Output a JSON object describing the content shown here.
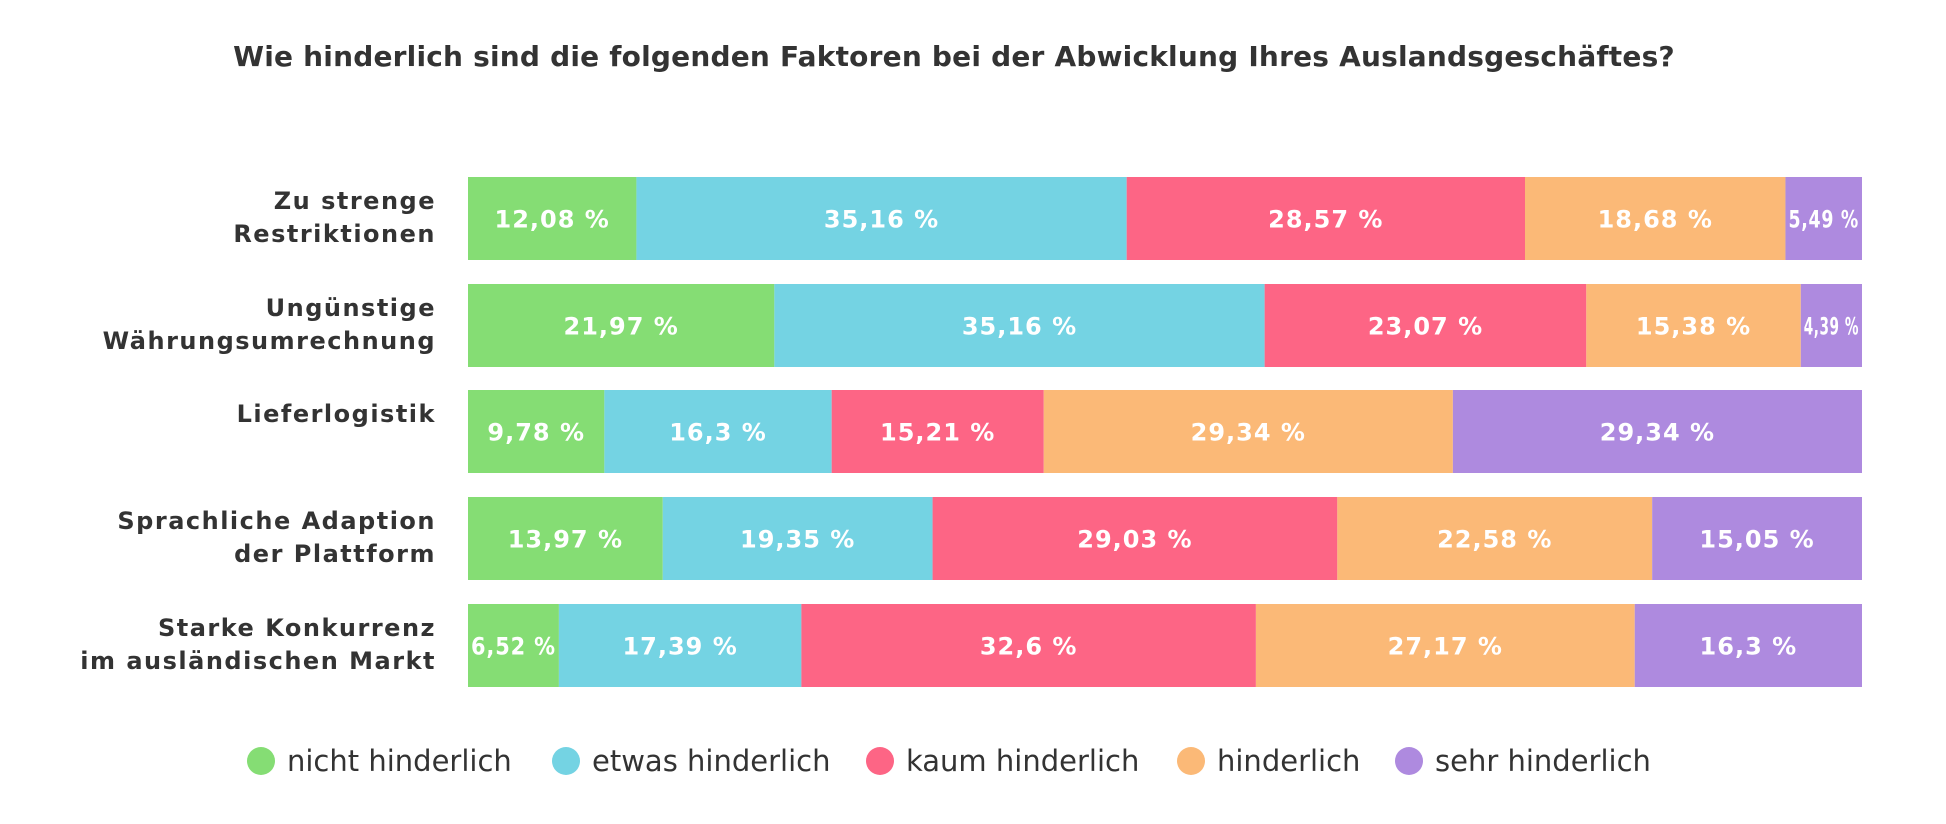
{
  "chart_data": {
    "type": "bar",
    "orientation": "horizontal",
    "stacked": true,
    "title": "Wie hinderlich sind die folgenden Faktoren bei der Abwicklung Ihres Auslandsgeschäftes?",
    "categories": [
      [
        "Zu strenge",
        "Restriktionen"
      ],
      [
        "Ungünstige",
        "Währungsumrechnung"
      ],
      [
        "Lieferlogistik"
      ],
      [
        "Sprachliche Adaption",
        "der Plattform"
      ],
      [
        "Starke Konkurrenz",
        "im ausländischen Markt"
      ]
    ],
    "series": [
      {
        "name": "nicht hinderlich",
        "color": "#85DD74",
        "values": [
          12.08,
          21.97,
          9.78,
          13.97,
          6.52
        ],
        "labels": [
          "12,08 %",
          "21,97 %",
          "9,78 %",
          "13,97 %",
          "6,52 %"
        ]
      },
      {
        "name": "etwas hinderlich",
        "color": "#74D3E3",
        "values": [
          35.16,
          35.16,
          16.3,
          19.35,
          17.39
        ],
        "labels": [
          "35,16 %",
          "35,16 %",
          "16,3 %",
          "19,35 %",
          "17,39 %"
        ]
      },
      {
        "name": "kaum hinderlich",
        "color": "#FD6585",
        "values": [
          28.57,
          23.07,
          15.21,
          29.03,
          32.6
        ],
        "labels": [
          "28,57 %",
          "23,07 %",
          "15,21 %",
          "29,03 %",
          "32,6 %"
        ]
      },
      {
        "name": "hinderlich",
        "color": "#FBB977",
        "values": [
          18.68,
          15.38,
          29.34,
          22.58,
          27.17
        ],
        "labels": [
          "18,68 %",
          "15,38 %",
          "29,34 %",
          "22,58 %",
          "27,17 %"
        ]
      },
      {
        "name": "sehr hinderlich",
        "color": "#AE8ADF",
        "values": [
          5.49,
          4.39,
          29.34,
          15.05,
          16.3
        ],
        "labels": [
          "5,49 %",
          "4,39 %",
          "29,34 %",
          "15,05 %",
          "16,3 %"
        ]
      }
    ],
    "xlim": [
      0,
      100
    ],
    "grid": false,
    "legend_position": "bottom"
  }
}
